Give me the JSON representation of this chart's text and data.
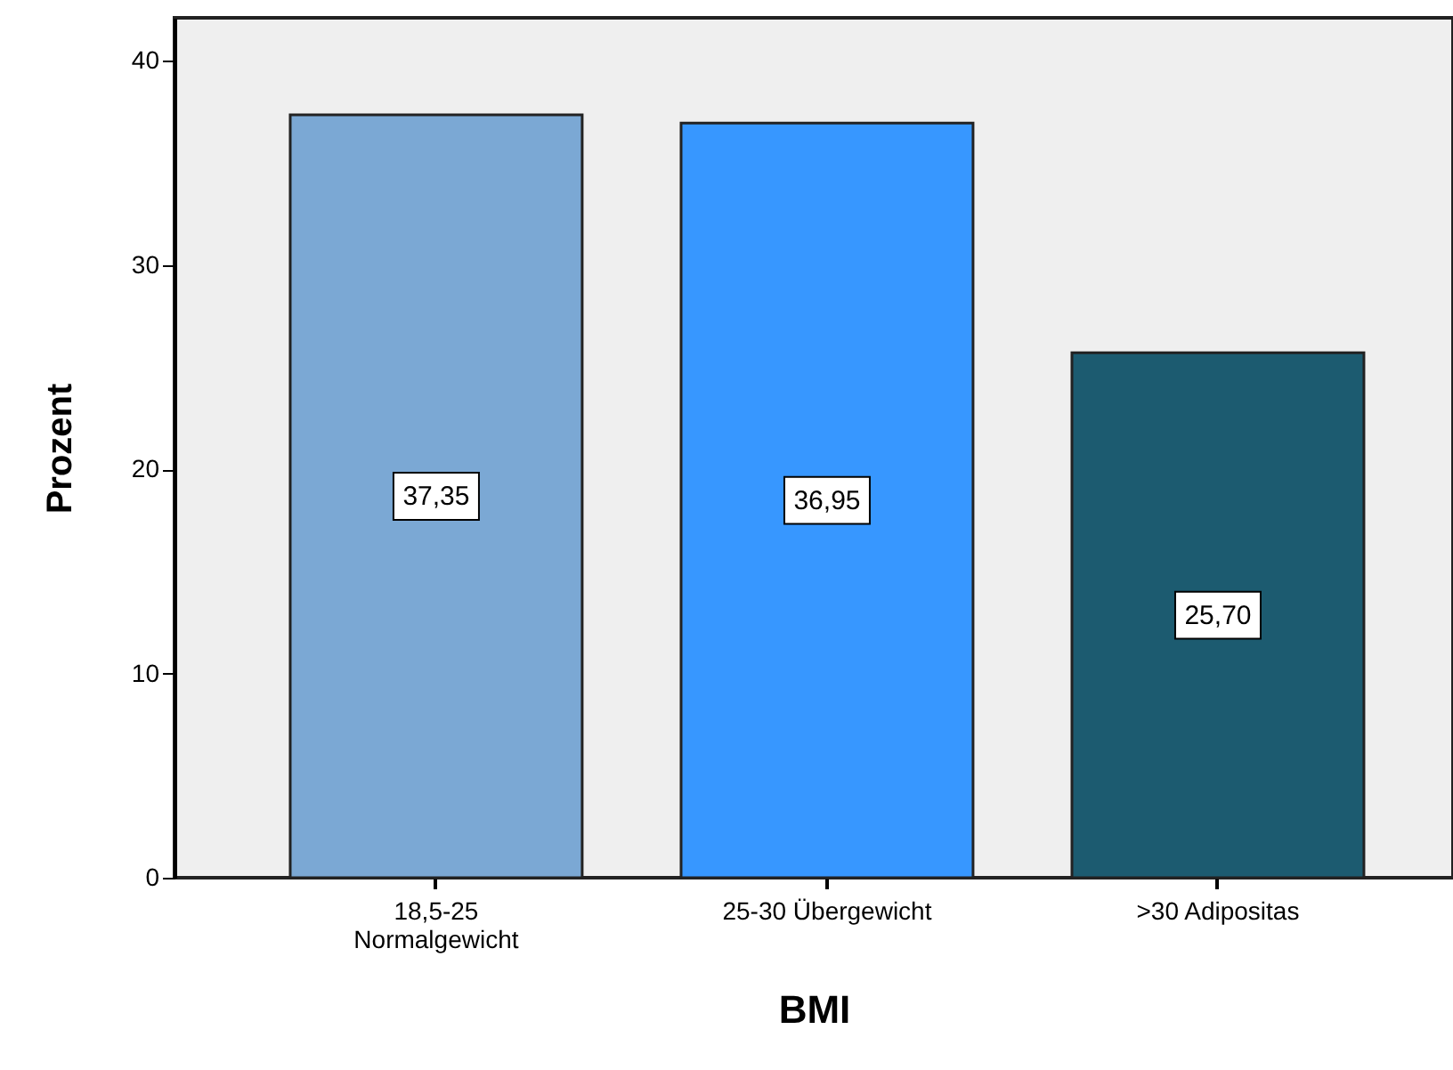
{
  "chart_data": {
    "type": "bar",
    "xlabel": "BMI",
    "ylabel": "Prozent",
    "categories": [
      "18,5-25\nNormalgewicht",
      "25-30 Übergewicht",
      ">30 Adipositas"
    ],
    "values": [
      37.35,
      36.95,
      25.7
    ],
    "colors": [
      "#7ba8d4",
      "#3797ff",
      "#1c5b70"
    ],
    "value_labels": [
      "37,35",
      "36,95",
      "25,70"
    ],
    "ylim": [
      0,
      42.1
    ],
    "yticks": [
      0,
      10,
      20,
      30,
      40
    ],
    "grid": false
  }
}
